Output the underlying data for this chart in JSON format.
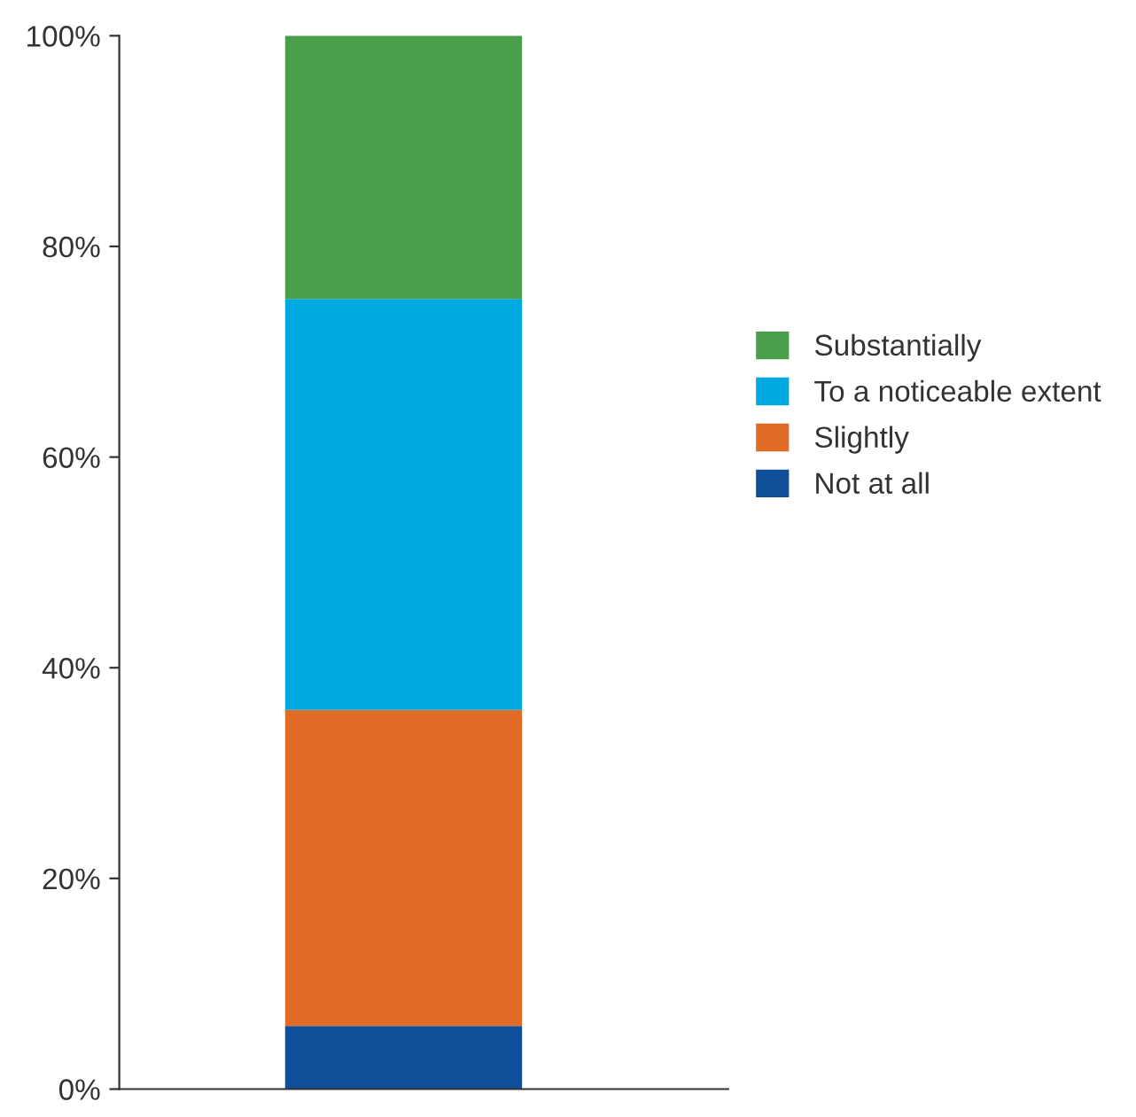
{
  "chart_data": {
    "type": "bar",
    "stacked": true,
    "categories": [
      null
    ],
    "series": [
      {
        "name": "Not at all",
        "color": "#0f4f9a",
        "values": [
          6
        ]
      },
      {
        "name": "Slightly",
        "color": "#e06c28",
        "values": [
          30
        ]
      },
      {
        "name": "To a noticeable extent",
        "color": "#00a8e1",
        "values": [
          39
        ]
      },
      {
        "name": "Substantially",
        "color": "#4aa04a",
        "values": [
          25
        ]
      }
    ],
    "ylim": [
      0,
      100
    ],
    "yticks": [
      {
        "value": 0,
        "label": "0%"
      },
      {
        "value": 20,
        "label": "20%"
      },
      {
        "value": 40,
        "label": "40%"
      },
      {
        "value": 60,
        "label": "60%"
      },
      {
        "value": 80,
        "label": "80%"
      },
      {
        "value": 100,
        "label": "100%"
      }
    ],
    "grid": false,
    "legend": "right"
  }
}
